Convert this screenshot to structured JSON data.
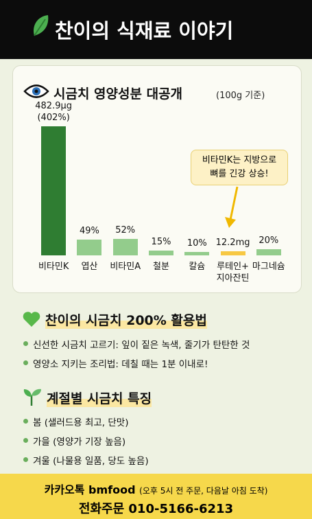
{
  "header": {
    "title": "찬이의 식재료 이야기"
  },
  "chart_data": {
    "type": "bar",
    "title": "시금치 영양성분 대공개",
    "subtitle": "(100g 기준)",
    "categories": [
      "비타민K",
      "엽산",
      "비타민A",
      "철분",
      "칼슘",
      "루테인+\n지아잔틴",
      "마그네슘"
    ],
    "values": [
      402,
      49,
      52,
      15,
      10,
      12.2,
      20
    ],
    "value_labels": [
      "482.9μg\n(402%)",
      "49%",
      "52%",
      "15%",
      "10%",
      "12.2mg",
      "20%"
    ],
    "colors": [
      "#2f7d32",
      "#93cc8c",
      "#93cc8c",
      "#93cc8c",
      "#93cc8c",
      "#f7c843",
      "#93cc8c"
    ],
    "annotation": "비타민K는 지방으로\n뼈를 긴강 상승!"
  },
  "tips": {
    "title": "찬이의 시금치 200% 활용법",
    "items": [
      "신선한 시금치 고르기: 잎이 짙은 녹색, 줄기가 탄탄한 것",
      "영양소 지키는 조리법: 데칠 때는 1분 이내로!"
    ]
  },
  "seasons": {
    "title": "계절별 시금치 특징",
    "items": [
      "봄 (샐러드용 최고, 단맛)",
      "가을 (영양가 기장 높음)",
      "겨울 (나물용 일품, 당도 높음)"
    ]
  },
  "footer": {
    "line1": "카카오톡 bmfood",
    "line1_note": "(오후 5시 전 주문, 다음날 아침 도착)",
    "line2": "전화주문 010-5166-6213"
  }
}
